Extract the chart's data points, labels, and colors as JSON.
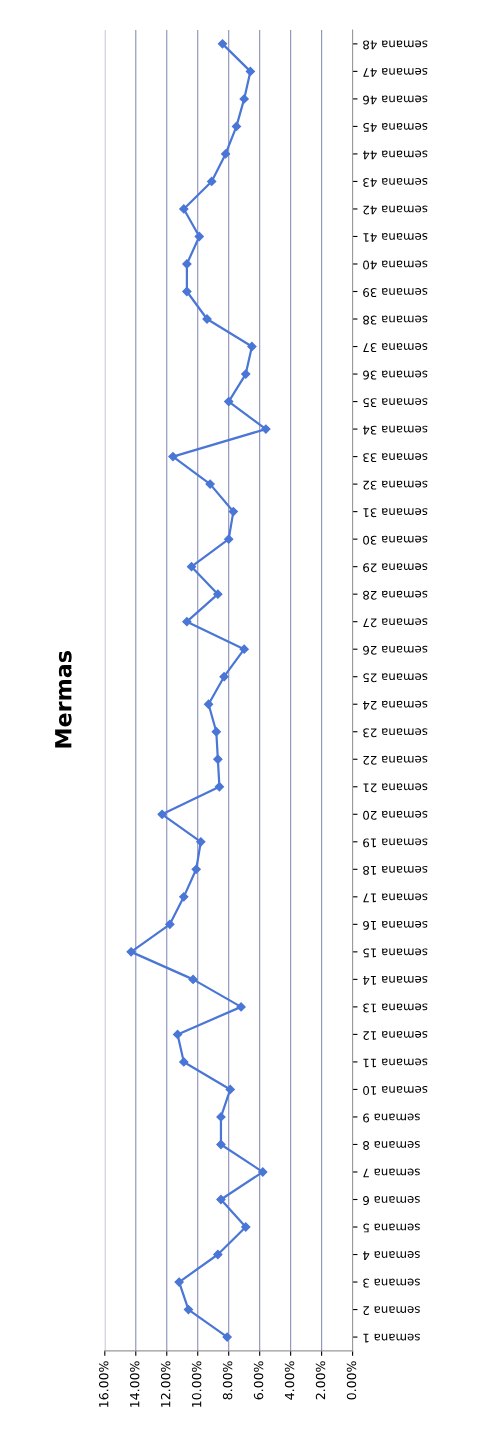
{
  "chart_data": {
    "type": "line",
    "title": "Mermas",
    "orientation": "horizontal",
    "categories": [
      "semana 48",
      "semana 47",
      "semana 46",
      "semana 45",
      "semana 44",
      "semana 43",
      "semana 42",
      "semana 41",
      "semana 40",
      "semana 39",
      "semana 38",
      "semana 37",
      "semana 36",
      "semana 35",
      "semana 34",
      "semana 33",
      "semana 32",
      "semana 31",
      "semana 30",
      "semana 29",
      "semana 28",
      "semana 27",
      "semana 26",
      "semana 25",
      "semana 24",
      "semana 23",
      "semana 22",
      "semana 21",
      "semana 20",
      "semana 19",
      "semana 18",
      "semana 17",
      "semana 16",
      "semana 15",
      "semana 14",
      "semana 13",
      "semana 12",
      "semana 11",
      "semana 10",
      "semana 9",
      "semana 8",
      "semana 7",
      "semana 6",
      "semana 5",
      "semana 4",
      "semana 3",
      "semana 2",
      "semana 1"
    ],
    "values": [
      8.4,
      6.6,
      7.0,
      7.5,
      8.2,
      9.1,
      10.9,
      9.9,
      10.7,
      10.7,
      9.4,
      6.5,
      6.9,
      8.0,
      5.6,
      11.6,
      9.2,
      7.7,
      8.0,
      10.4,
      8.7,
      10.7,
      7.0,
      8.3,
      9.3,
      8.8,
      8.7,
      8.6,
      12.3,
      9.8,
      10.1,
      10.9,
      11.8,
      14.3,
      10.3,
      7.2,
      11.3,
      10.9,
      7.9,
      8.5,
      8.5,
      5.8,
      8.5,
      6.9,
      8.7,
      11.2,
      10.6,
      8.1
    ],
    "color": "#4a76d6",
    "marker": "diamond",
    "line_style": "solid",
    "grid": "x",
    "xlim": [
      16,
      0
    ],
    "xticks": [
      {
        "value": 16,
        "label": "16.00%"
      },
      {
        "value": 14,
        "label": "14.00%"
      },
      {
        "value": 12,
        "label": "12.00%"
      },
      {
        "value": 10,
        "label": "10.00%"
      },
      {
        "value": 8,
        "label": "8.00%"
      },
      {
        "value": 6,
        "label": "6.00%"
      },
      {
        "value": 4,
        "label": "4.00%"
      },
      {
        "value": 2,
        "label": "2.00%"
      },
      {
        "value": 0,
        "label": "0.00%"
      }
    ]
  }
}
